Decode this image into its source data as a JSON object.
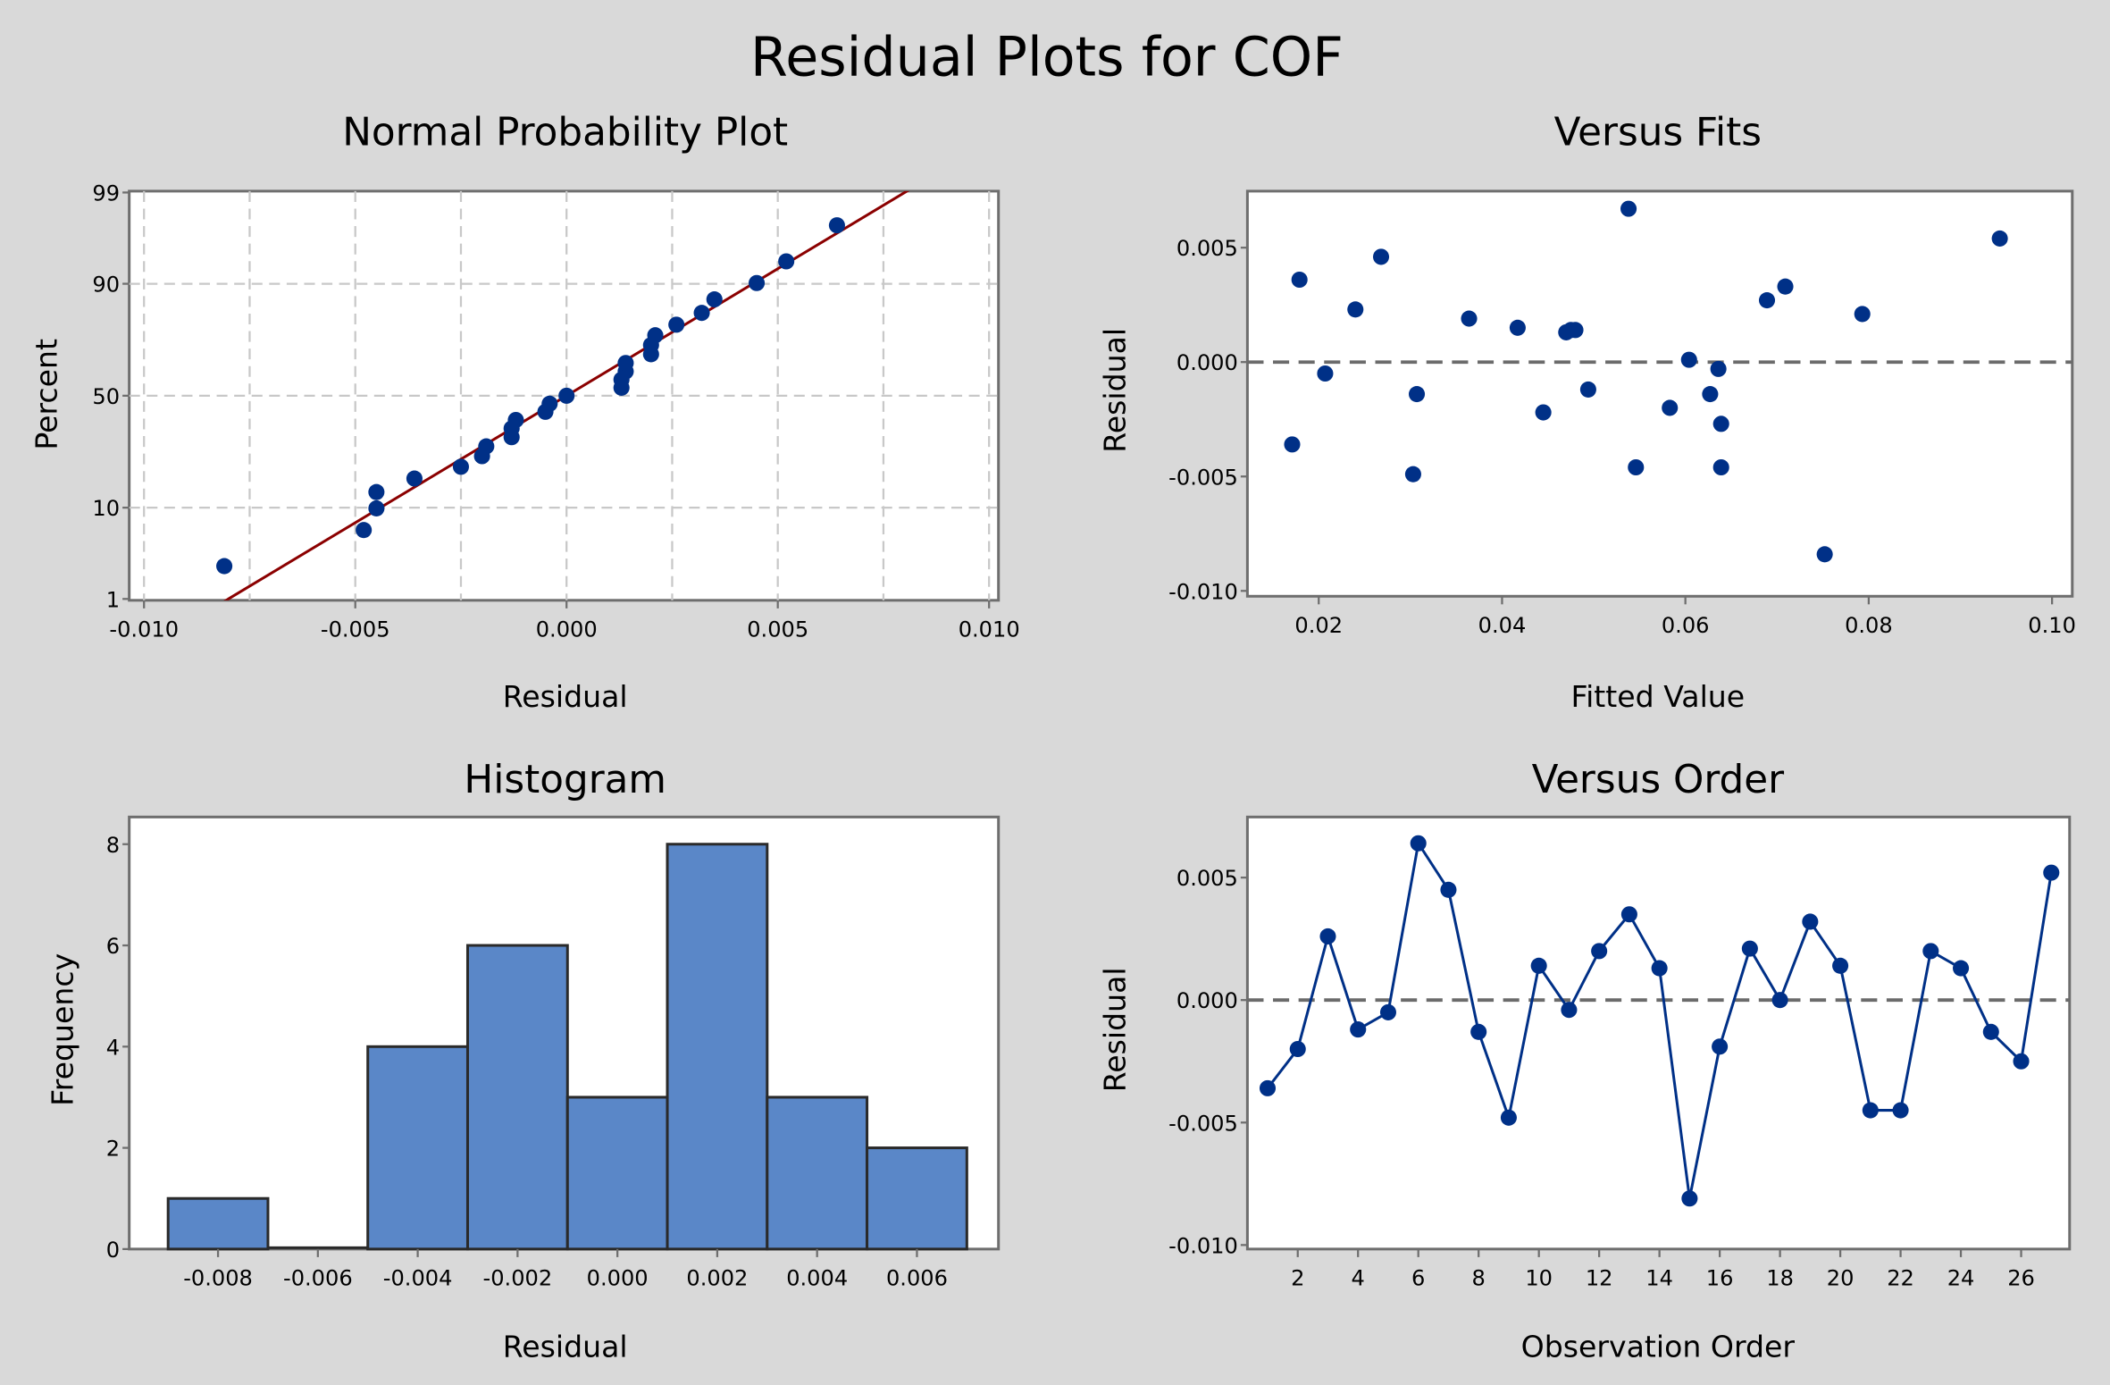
{
  "title": "Residual Plots for COF",
  "colors": {
    "point": "#003087",
    "bar": "#5a87c8",
    "fitline": "#8b0000",
    "ref": "#6b6b6b",
    "background": "#d9d9d9"
  },
  "chart_data": [
    {
      "type": "scatter",
      "title": "Normal Probability Plot",
      "xlabel": "Residual",
      "ylabel": "Percent",
      "xlim": [
        -0.01,
        0.01
      ],
      "xticks": [
        "-0.010",
        "-0.005",
        "0.000",
        "0.005",
        "0.010"
      ],
      "yticks": [
        "1",
        "10",
        "50",
        "90",
        "99"
      ],
      "fit_line": {
        "mean": 0.0,
        "sd": 0.00344
      },
      "grid": true,
      "note": "points are sorted residuals plotted against median-rank percent"
    },
    {
      "type": "scatter",
      "title": "Versus Fits",
      "xlabel": "Fitted Value",
      "ylabel": "Residual",
      "xlim": [
        0.013,
        0.1
      ],
      "ylim": [
        -0.0102,
        0.0076
      ],
      "xticks": [
        "0.02",
        "0.04",
        "0.06",
        "0.08",
        "0.10"
      ],
      "yticks": [
        "0.005",
        "0.000",
        "-0.005",
        "-0.010"
      ],
      "x": [
        0.0171,
        0.0179,
        0.0207,
        0.024,
        0.0268,
        0.0303,
        0.0307,
        0.0364,
        0.0417,
        0.0445,
        0.047,
        0.048,
        0.0494,
        0.0538,
        0.0546,
        0.0583,
        0.0604,
        0.0627,
        0.0636,
        0.0639,
        0.0639,
        0.0689,
        0.0709,
        0.0752,
        0.0793,
        0.0943,
        0.0475
      ],
      "y": [
        -0.0036,
        0.0036,
        -0.0005,
        0.0023,
        0.0046,
        -0.0049,
        -0.0014,
        0.0019,
        0.0015,
        -0.0022,
        0.0013,
        0.0014,
        -0.0012,
        0.0067,
        -0.0046,
        -0.002,
        0.0001,
        -0.0014,
        -0.0003,
        -0.0027,
        -0.0046,
        0.0027,
        0.0033,
        -0.0084,
        0.0021,
        0.0054,
        0.0014
      ],
      "reference_line": 0
    },
    {
      "type": "bar",
      "title": "Histogram",
      "xlabel": "Residual",
      "ylabel": "Frequency",
      "categories": [
        "-0.008",
        "-0.006",
        "-0.004",
        "-0.002",
        "0.000",
        "0.002",
        "0.004",
        "0.006"
      ],
      "values": [
        1,
        0,
        4,
        6,
        3,
        8,
        3,
        2
      ],
      "yticks": [
        "0",
        "2",
        "4",
        "6",
        "8"
      ],
      "ylim": [
        0,
        8.5
      ]
    },
    {
      "type": "line",
      "title": "Versus Order",
      "xlabel": "Observation Order",
      "ylabel": "Residual",
      "xticks": [
        "2",
        "4",
        "6",
        "8",
        "10",
        "12",
        "14",
        "16",
        "18",
        "20",
        "22",
        "24",
        "26"
      ],
      "yticks": [
        "0.005",
        "0.000",
        "-0.005",
        "-0.010"
      ],
      "x": [
        1,
        2,
        3,
        4,
        5,
        6,
        7,
        8,
        9,
        10,
        11,
        12,
        13,
        14,
        15,
        16,
        17,
        18,
        19,
        20,
        21,
        22,
        23,
        24,
        25,
        26,
        27
      ],
      "y": [
        -0.0036,
        -0.002,
        0.0026,
        -0.0012,
        -0.0005,
        0.0064,
        0.0045,
        -0.0013,
        -0.0048,
        0.0014,
        -0.0004,
        0.002,
        0.0035,
        0.0013,
        -0.0081,
        -0.0019,
        0.0021,
        0.0,
        0.0032,
        0.0014,
        -0.0045,
        -0.0045,
        0.002,
        0.0013,
        -0.0013,
        -0.0025,
        0.0052
      ],
      "reference_line": 0
    }
  ]
}
